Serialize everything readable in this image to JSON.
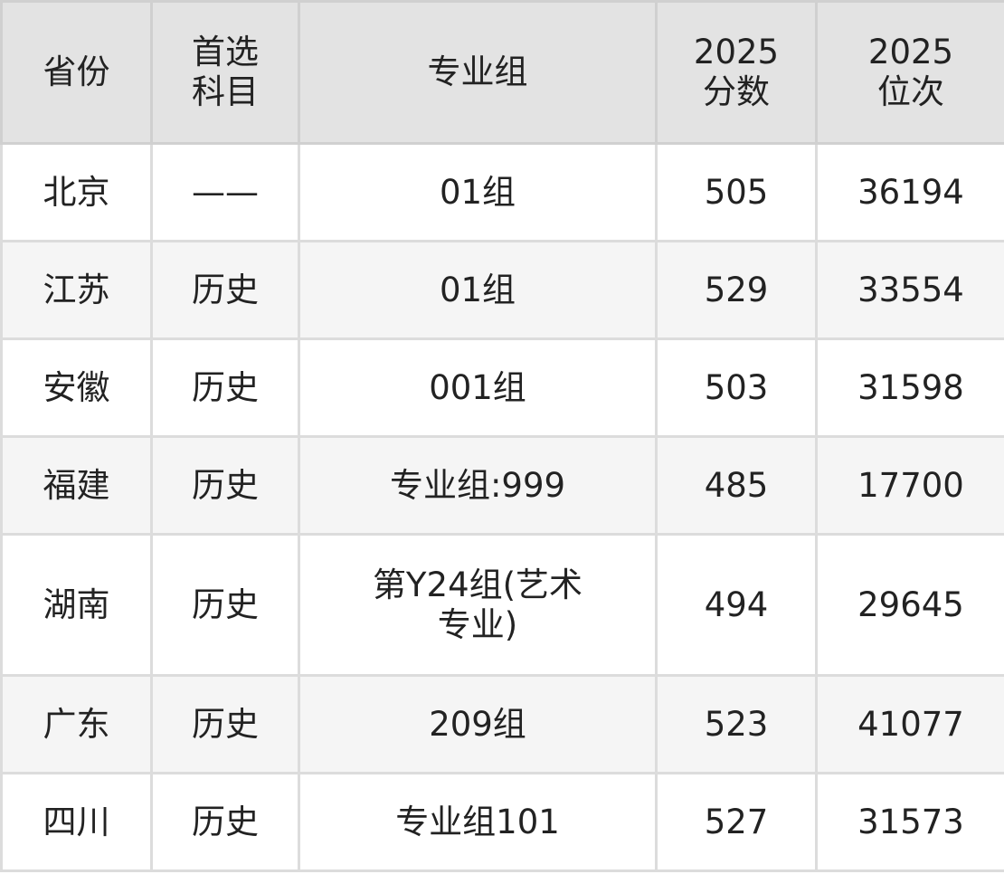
{
  "table": {
    "headers": [
      "省份",
      "首选科目",
      "专业组",
      "2025分数",
      "2025位次"
    ],
    "header_lines": [
      [
        "省份"
      ],
      [
        "首选",
        "科目"
      ],
      [
        "专业组"
      ],
      [
        "2025",
        "分数"
      ],
      [
        "2025",
        "位次"
      ]
    ],
    "rows": [
      [
        "北京",
        "——",
        "01组",
        "505",
        "36194"
      ],
      [
        "江苏",
        "历史",
        "01组",
        "529",
        "33554"
      ],
      [
        "安徽",
        "历史",
        "001组",
        "503",
        "31598"
      ],
      [
        "福建",
        "历史",
        "专业组:999",
        "485",
        "17700"
      ],
      [
        "湖南",
        "历史",
        "第Y24组(艺术专业)",
        "494",
        "29645"
      ],
      [
        "广东",
        "历史",
        "209组",
        "523",
        "41077"
      ],
      [
        "四川",
        "历史",
        "专业组101",
        "527",
        "31573"
      ]
    ]
  }
}
